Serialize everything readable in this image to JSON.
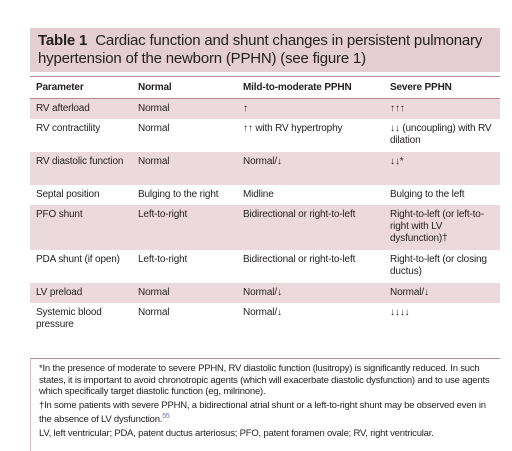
{
  "header": {
    "label": "Table 1",
    "title": "Cardiac function and shunt changes in persistent pulmonary hypertension of the newborn (PPHN) (see figure 1)"
  },
  "table": {
    "columns": [
      "Parameter",
      "Normal",
      "Mild-to-moderate PPHN",
      "Severe PPHN"
    ],
    "rows": [
      [
        "RV afterload",
        "Normal",
        "↑",
        "↑↑↑"
      ],
      [
        "RV contractility",
        "Normal",
        "↑↑ with RV hypertrophy",
        "↓↓ (uncoupling) with RV dilation"
      ],
      [
        "RV diastolic function",
        "Normal",
        "Normal/↓",
        "↓↓*"
      ],
      [
        "Septal position",
        "Bulging to the right",
        "Midline",
        "Bulging to the left"
      ],
      [
        "PFO shunt",
        "Left-to-right",
        "Bidirectional or right-to-left",
        "Right-to-left (or left-to-right with LV dysfunction)†"
      ],
      [
        "PDA shunt (if open)",
        "Left-to-right",
        "Bidirectional or right-to-left",
        "Right-to-left (or closing ductus)"
      ],
      [
        "LV preload",
        "Normal",
        "Normal/↓",
        "Normal/↓"
      ],
      [
        "Systemic blood pressure",
        "Normal",
        "Normal/↓",
        "↓↓↓↓"
      ]
    ]
  },
  "footnotes": [
    {
      "text": "*In the presence of moderate to severe PPHN, RV diastolic function (lusitropy) is significantly reduced. In such states, it is important to avoid chronotropic agents (which will exacerbate diastolic dysfunction) and to use agents which specifically target diastolic function (eg, milrinone)."
    },
    {
      "text": "†In some patients with severe PPHN, a bidirectional atrial shunt or a left-to-right shunt may be observed even in the absence of LV dysfunction.",
      "ref": "55"
    },
    {
      "text": "LV, left ventricular; PDA, patent ductus arteriosus; PFO, patent foramen ovale; RV, right ventricular."
    }
  ]
}
